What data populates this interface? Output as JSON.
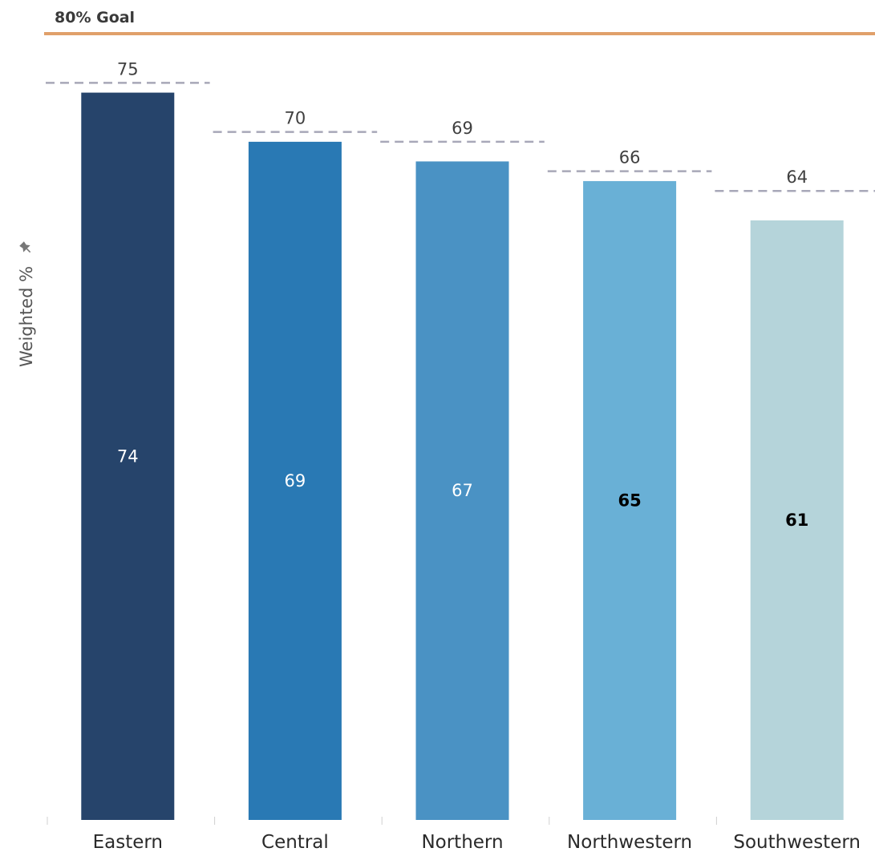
{
  "chart_data": {
    "type": "bar",
    "categories": [
      "Eastern",
      "Central",
      "Northern",
      "Northwestern",
      "Southwestern"
    ],
    "series": [
      {
        "values": [
          74,
          69,
          67,
          65,
          61
        ]
      }
    ],
    "targets": [
      75,
      70,
      69,
      66,
      64
    ],
    "goal": {
      "label": "80% Goal",
      "value": 80
    },
    "ylabel": "Weighted %",
    "ylim": [
      0,
      82
    ],
    "grid": false,
    "colors": [
      "#26446b",
      "#2979b4",
      "#4a92c4",
      "#69b0d6",
      "#b5d4da"
    ],
    "label_colors": [
      "#ffffff",
      "#ffffff",
      "#ffffff",
      "#000000",
      "#000000"
    ],
    "goal_color": "#e0a06a",
    "target_color": "#a8a8b8",
    "icons": {
      "ylabel": "pin-icon"
    }
  }
}
